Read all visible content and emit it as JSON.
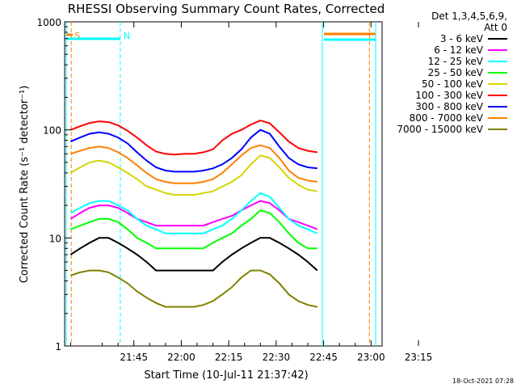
{
  "chart_data": {
    "type": "line",
    "title": "RHESSI Observing Summary Count Rates, Corrected",
    "xlabel": "Start Time (10-Jul-11 21:37:42)",
    "ylabel": "Corrected Count Rate (s⁻¹ detector⁻¹)",
    "y_scale": "log",
    "ylim": [
      1,
      1000
    ],
    "y_ticks": [
      {
        "value": 1,
        "label": "1"
      },
      {
        "value": 10,
        "label": "10"
      },
      {
        "value": 100,
        "label": "100"
      },
      {
        "value": 1000,
        "label": "1000"
      }
    ],
    "xlim_minutes": [
      -21.9,
      78.5
    ],
    "x_ticks": [
      {
        "value": 0,
        "label": "21:45"
      },
      {
        "value": 15,
        "label": "22:00"
      },
      {
        "value": 30,
        "label": "22:15"
      },
      {
        "value": 45,
        "label": "22:30"
      },
      {
        "value": 60,
        "label": "22:45"
      },
      {
        "value": 75,
        "label": "23:00"
      },
      {
        "value": 90,
        "label": "23:15"
      }
    ],
    "legend_header": [
      "Det 1,3,4,5,6,9,",
      "Att 0"
    ],
    "legend_placement": "right",
    "grid": false,
    "markers": [
      {
        "label": "S",
        "color": "#ff7f00",
        "x": -19.8
      },
      {
        "label": "N",
        "color": "#00ffff",
        "x": -4.3
      }
    ],
    "x": [
      -20,
      -17,
      -14,
      -11,
      -8,
      -5,
      -2,
      1,
      4,
      7,
      10,
      13,
      16,
      19,
      22,
      25,
      28,
      31,
      34,
      37,
      40,
      43,
      46,
      49,
      52,
      55,
      58
    ],
    "series": [
      {
        "name": "3 - 6 keV",
        "color": "#000000",
        "values": [
          7,
          8,
          9,
          10,
          10,
          9,
          8,
          7,
          6,
          5,
          5,
          5,
          5,
          5,
          5,
          5,
          6,
          7,
          8,
          9,
          10,
          10,
          9,
          8,
          7,
          6,
          5
        ]
      },
      {
        "name": "6 - 12 keV",
        "color": "#ff00ff",
        "values": [
          15,
          17,
          19,
          20,
          20,
          19,
          17,
          15,
          14,
          13,
          13,
          13,
          13,
          13,
          13,
          14,
          15,
          16,
          18,
          20,
          22,
          21,
          18,
          15,
          14,
          13,
          12
        ]
      },
      {
        "name": "12 - 25 keV",
        "color": "#00ffff",
        "values": [
          17,
          19,
          21,
          22,
          22,
          20,
          18,
          15,
          13,
          12,
          11,
          11,
          11,
          11,
          11,
          12,
          13,
          15,
          18,
          22,
          26,
          24,
          19,
          15,
          13,
          12,
          11
        ]
      },
      {
        "name": "25 - 50 keV",
        "color": "#00ff00",
        "values": [
          12,
          13,
          14,
          15,
          15,
          14,
          12,
          10,
          9,
          8,
          8,
          8,
          8,
          8,
          8,
          9,
          10,
          11,
          13,
          15,
          18,
          17,
          14,
          11,
          9,
          8,
          8
        ]
      },
      {
        "name": "50 - 100 keV",
        "color": "#d4d400",
        "values": [
          40,
          45,
          50,
          52,
          50,
          45,
          40,
          35,
          30,
          28,
          26,
          25,
          25,
          25,
          26,
          27,
          30,
          33,
          38,
          48,
          58,
          55,
          45,
          36,
          31,
          28,
          27
        ]
      },
      {
        "name": "100 - 300 keV",
        "color": "#ff0000",
        "values": [
          100,
          108,
          116,
          120,
          118,
          110,
          98,
          85,
          72,
          63,
          60,
          59,
          60,
          60,
          62,
          66,
          80,
          92,
          100,
          112,
          122,
          115,
          95,
          78,
          68,
          64,
          62
        ]
      },
      {
        "name": "300 - 800 keV",
        "color": "#0000ff",
        "values": [
          78,
          85,
          92,
          95,
          92,
          85,
          75,
          62,
          52,
          45,
          42,
          41,
          41,
          41,
          42,
          44,
          48,
          55,
          66,
          85,
          100,
          92,
          70,
          55,
          48,
          45,
          44
        ]
      },
      {
        "name": "800 - 7000 keV",
        "color": "#ff7f00",
        "values": [
          60,
          64,
          68,
          70,
          68,
          62,
          55,
          47,
          40,
          35,
          33,
          32,
          32,
          32,
          33,
          35,
          40,
          48,
          58,
          68,
          72,
          68,
          55,
          42,
          36,
          34,
          33
        ]
      },
      {
        "name": "7000 - 15000 keV",
        "color": "#808000",
        "values": [
          4.5,
          4.8,
          5,
          5,
          4.8,
          4.3,
          3.8,
          3.2,
          2.8,
          2.5,
          2.3,
          2.3,
          2.3,
          2.3,
          2.4,
          2.6,
          3,
          3.5,
          4.3,
          5,
          5,
          4.6,
          3.8,
          3,
          2.6,
          2.4,
          2.3
        ]
      }
    ],
    "footer": "18-Oct-2021 07:28"
  }
}
